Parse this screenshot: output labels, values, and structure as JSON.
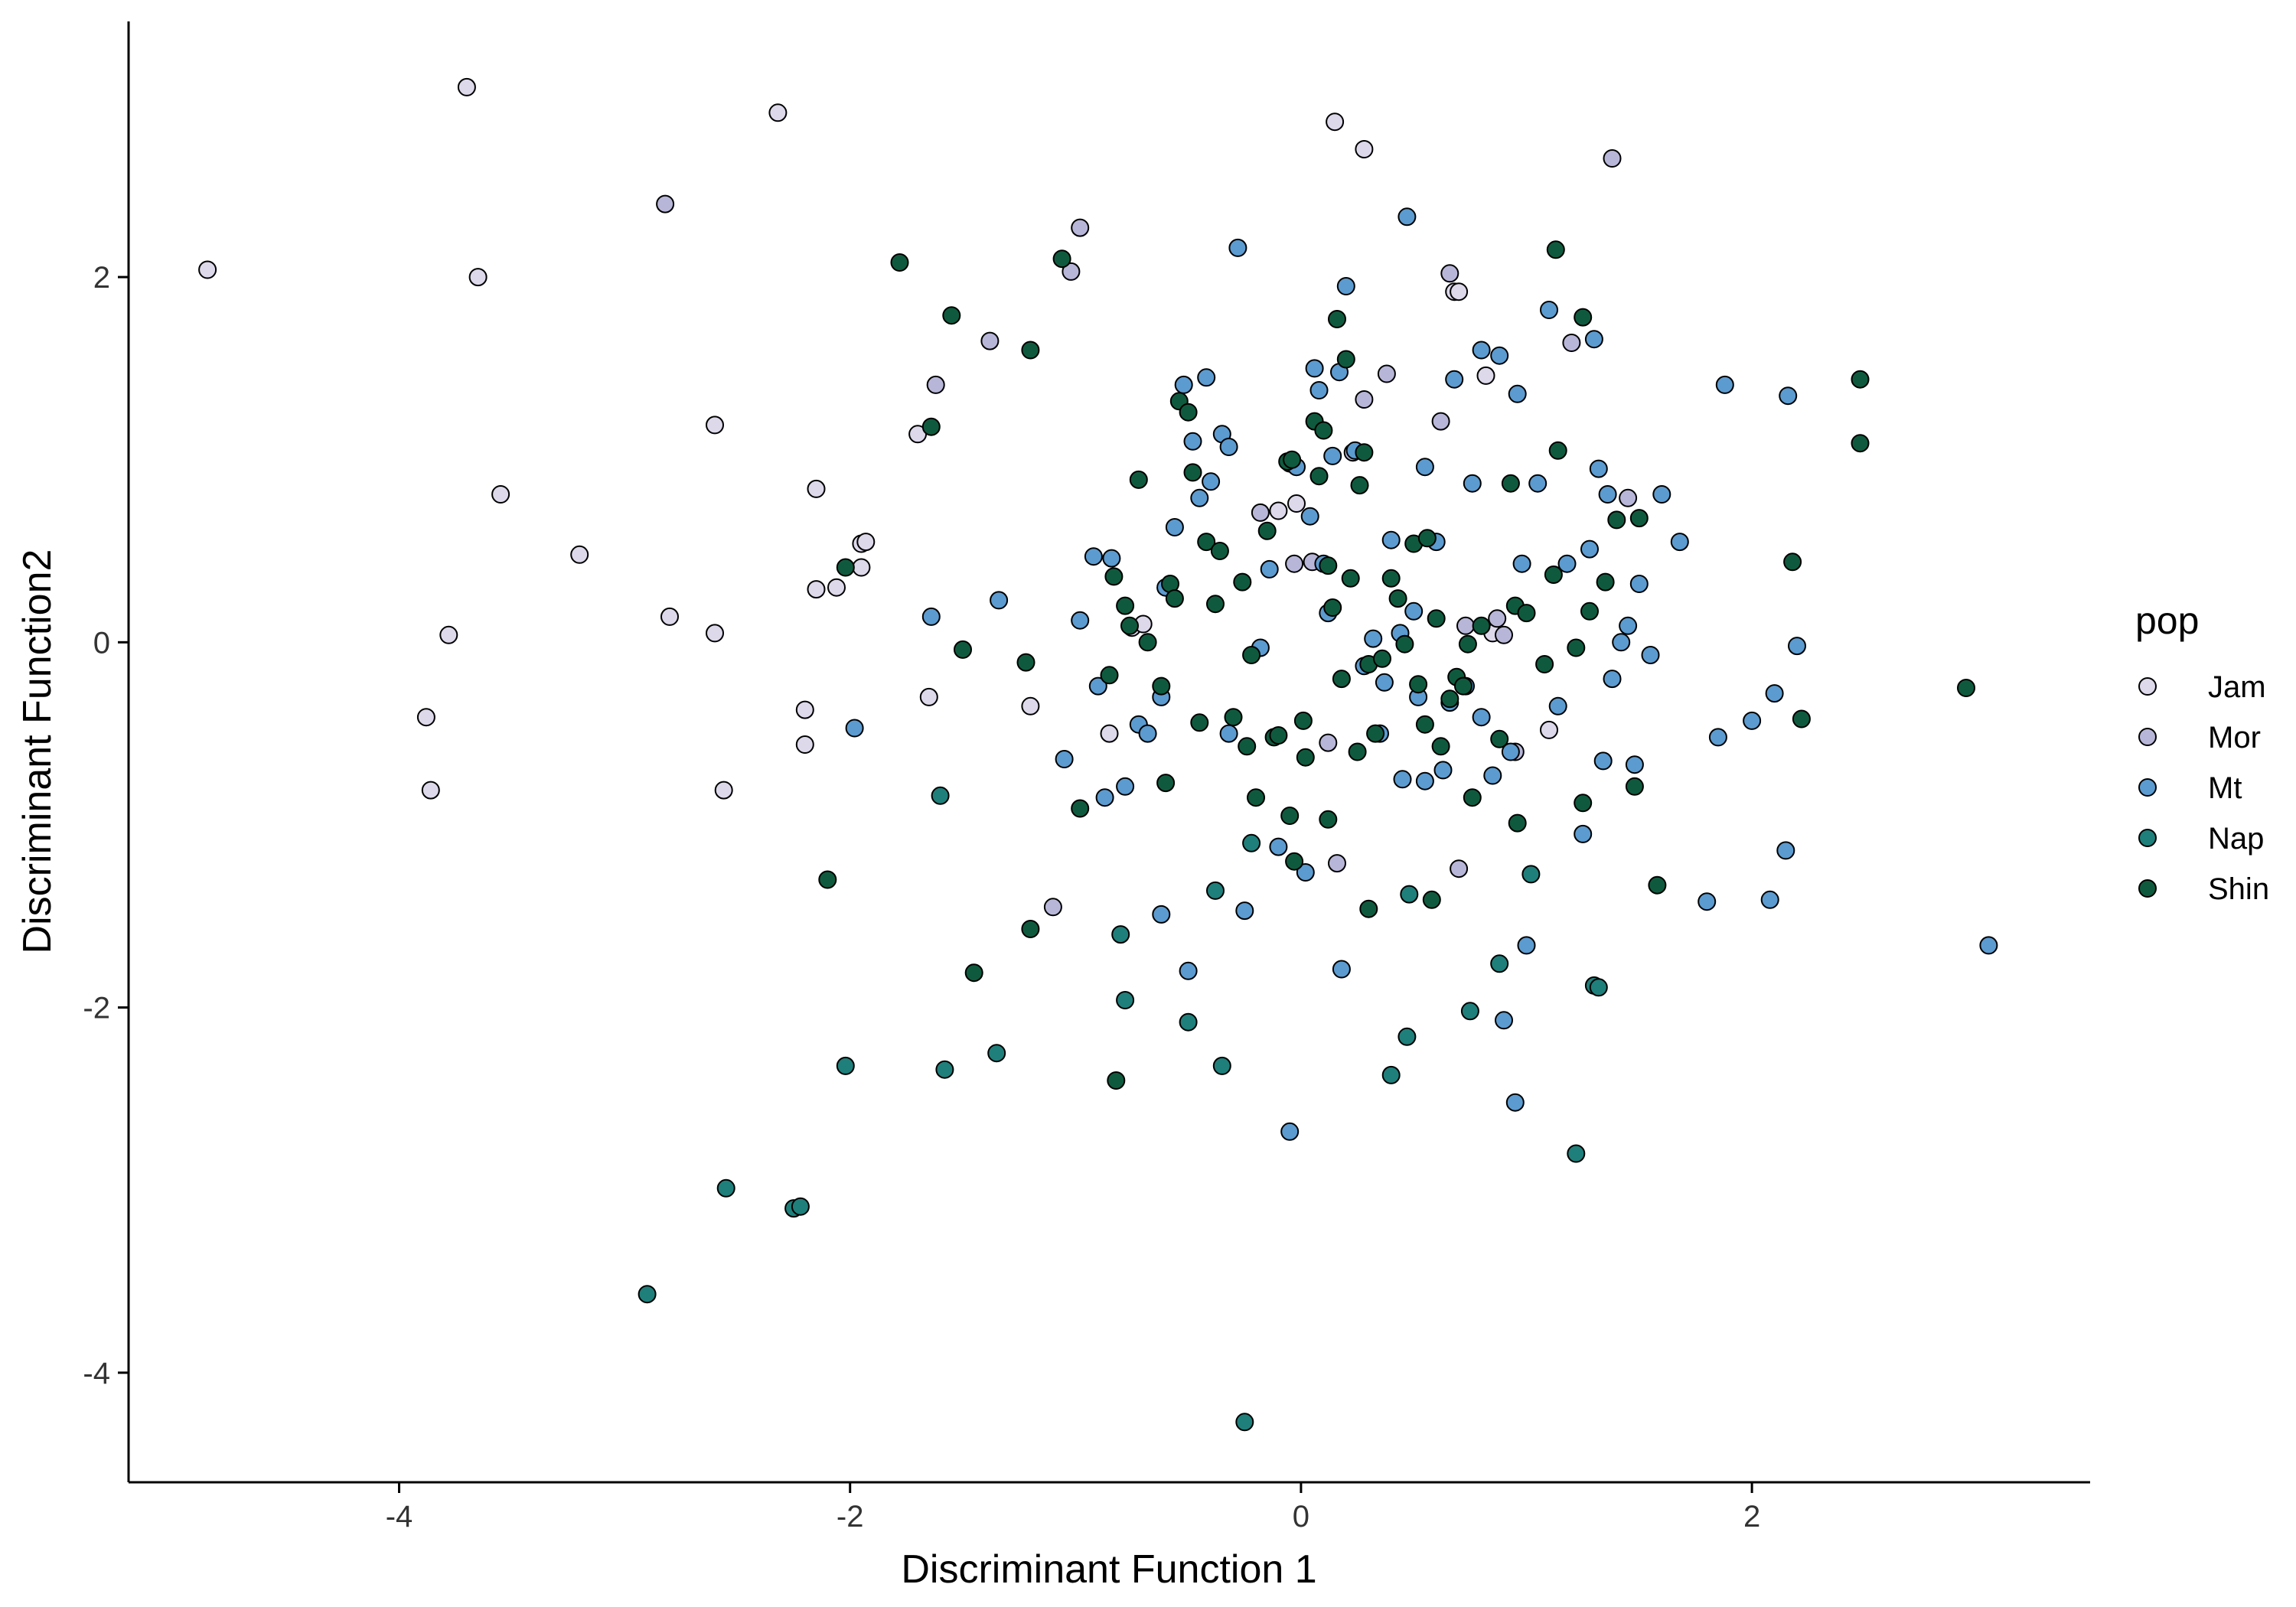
{
  "chart_data": {
    "type": "scatter",
    "title": "",
    "xlabel": "Discriminant Function 1",
    "ylabel": "Discriminant Function2",
    "xlim": [
      -5.2,
      3.5
    ],
    "ylim": [
      -4.6,
      3.4
    ],
    "xticks": [
      -4,
      -2,
      0,
      2
    ],
    "yticks": [
      -4,
      -2,
      0,
      2
    ],
    "tick_labels": {
      "x": [
        "-4",
        "-2",
        "0",
        "2"
      ],
      "y": [
        "-4",
        "-2",
        "0",
        "2"
      ]
    },
    "grid": false,
    "legend": {
      "title": "pop",
      "position": "right"
    },
    "series": [
      {
        "name": "Jam",
        "color": "#ddd8ea",
        "points": [
          [
            -4.85,
            2.04
          ],
          [
            -3.7,
            3.04
          ],
          [
            -3.65,
            2.0
          ],
          [
            -3.55,
            0.81
          ],
          [
            -3.2,
            0.48
          ],
          [
            -3.78,
            0.04
          ],
          [
            -3.88,
            -0.41
          ],
          [
            -3.86,
            -0.81
          ],
          [
            -2.32,
            2.9
          ],
          [
            -2.8,
            0.14
          ],
          [
            -2.6,
            1.19
          ],
          [
            -2.6,
            0.05
          ],
          [
            -2.56,
            -0.81
          ],
          [
            -2.2,
            -0.56
          ],
          [
            -2.2,
            -0.37
          ],
          [
            -2.15,
            0.29
          ],
          [
            -2.06,
            0.3
          ],
          [
            -2.15,
            0.84
          ],
          [
            -1.95,
            0.54
          ],
          [
            -1.93,
            0.55
          ],
          [
            -1.95,
            0.41
          ],
          [
            -1.7,
            1.14
          ],
          [
            -1.65,
            -0.3
          ],
          [
            -1.2,
            -0.35
          ],
          [
            -0.85,
            -0.5
          ],
          [
            -0.75,
            0.08
          ],
          [
            -0.7,
            0.1
          ],
          [
            -0.1,
            0.72
          ],
          [
            -0.02,
            0.76
          ],
          [
            0.15,
            2.85
          ],
          [
            0.28,
            2.7
          ],
          [
            0.68,
            1.92
          ],
          [
            0.7,
            1.92
          ],
          [
            0.85,
            0.05
          ],
          [
            1.1,
            -0.48
          ],
          [
            0.82,
            1.46
          ]
        ]
      },
      {
        "name": "Mor",
        "color": "#b8b6d8",
        "points": [
          [
            -2.82,
            2.4
          ],
          [
            -1.62,
            1.41
          ],
          [
            -1.38,
            1.65
          ],
          [
            -1.02,
            2.03
          ],
          [
            -0.98,
            2.27
          ],
          [
            -1.1,
            -1.45
          ],
          [
            -0.18,
            0.71
          ],
          [
            0.05,
            0.44
          ],
          [
            -0.03,
            0.43
          ],
          [
            0.12,
            -0.55
          ],
          [
            0.16,
            -1.21
          ],
          [
            0.28,
            1.33
          ],
          [
            0.38,
            1.47
          ],
          [
            0.62,
            1.21
          ],
          [
            0.66,
            2.02
          ],
          [
            0.7,
            -1.24
          ],
          [
            0.87,
            0.13
          ],
          [
            0.9,
            0.04
          ],
          [
            1.38,
            2.65
          ],
          [
            1.2,
            1.64
          ],
          [
            1.45,
            0.79
          ],
          [
            0.95,
            -0.6
          ],
          [
            0.23,
            1.04
          ],
          [
            0.73,
            0.09
          ]
        ]
      },
      {
        "name": "Mt",
        "color": "#5b9bd0",
        "points": [
          [
            -1.64,
            0.14
          ],
          [
            -1.98,
            -0.47
          ],
          [
            -1.34,
            0.23
          ],
          [
            -1.05,
            -0.64
          ],
          [
            -0.98,
            0.12
          ],
          [
            -0.92,
            0.47
          ],
          [
            -0.9,
            -0.24
          ],
          [
            -0.87,
            -0.85
          ],
          [
            -0.84,
            0.46
          ],
          [
            -0.78,
            -0.79
          ],
          [
            -0.72,
            -0.45
          ],
          [
            -0.68,
            -0.5
          ],
          [
            -0.62,
            -0.3
          ],
          [
            -0.6,
            0.3
          ],
          [
            -0.56,
            0.63
          ],
          [
            -0.52,
            1.41
          ],
          [
            -0.48,
            1.1
          ],
          [
            -0.45,
            0.79
          ],
          [
            -0.4,
            0.88
          ],
          [
            -0.35,
            1.14
          ],
          [
            -0.32,
            1.07
          ],
          [
            -0.32,
            -0.5
          ],
          [
            -0.28,
            2.16
          ],
          [
            -0.18,
            -0.03
          ],
          [
            -0.14,
            0.4
          ],
          [
            -0.1,
            -1.12
          ],
          [
            -0.05,
            0.98
          ],
          [
            -0.02,
            0.96
          ],
          [
            0.02,
            -1.26
          ],
          [
            0.04,
            0.69
          ],
          [
            0.06,
            1.5
          ],
          [
            0.08,
            1.38
          ],
          [
            0.1,
            0.43
          ],
          [
            0.12,
            0.16
          ],
          [
            0.14,
            1.02
          ],
          [
            0.17,
            1.48
          ],
          [
            0.2,
            1.95
          ],
          [
            0.24,
            1.05
          ],
          [
            0.28,
            -0.13
          ],
          [
            0.32,
            0.02
          ],
          [
            0.35,
            -0.5
          ],
          [
            0.37,
            -0.22
          ],
          [
            0.4,
            0.56
          ],
          [
            0.44,
            0.05
          ],
          [
            0.47,
            2.33
          ],
          [
            0.5,
            0.17
          ],
          [
            0.52,
            -0.3
          ],
          [
            0.55,
            0.96
          ],
          [
            0.6,
            0.55
          ],
          [
            0.63,
            -0.7
          ],
          [
            0.66,
            -0.33
          ],
          [
            0.68,
            1.44
          ],
          [
            0.73,
            -0.24
          ],
          [
            0.76,
            0.87
          ],
          [
            0.8,
            1.6
          ],
          [
            0.8,
            -0.41
          ],
          [
            0.85,
            -0.73
          ],
          [
            0.88,
            1.57
          ],
          [
            0.9,
            -2.07
          ],
          [
            0.93,
            -0.6
          ],
          [
            0.96,
            1.36
          ],
          [
            0.98,
            0.43
          ],
          [
            1.0,
            -1.66
          ],
          [
            1.05,
            0.87
          ],
          [
            1.1,
            1.82
          ],
          [
            1.14,
            -0.35
          ],
          [
            1.18,
            0.43
          ],
          [
            1.25,
            -1.05
          ],
          [
            1.28,
            0.51
          ],
          [
            1.3,
            1.66
          ],
          [
            1.32,
            0.95
          ],
          [
            1.34,
            -0.65
          ],
          [
            1.36,
            0.81
          ],
          [
            1.38,
            -0.2
          ],
          [
            1.42,
            0.0
          ],
          [
            1.45,
            0.09
          ],
          [
            1.48,
            -0.67
          ],
          [
            1.5,
            0.32
          ],
          [
            1.55,
            -0.07
          ],
          [
            1.6,
            0.81
          ],
          [
            1.68,
            0.55
          ],
          [
            1.85,
            -0.52
          ],
          [
            1.88,
            1.41
          ],
          [
            1.8,
            -1.42
          ],
          [
            2.0,
            -0.43
          ],
          [
            2.08,
            -1.41
          ],
          [
            2.1,
            -0.28
          ],
          [
            2.15,
            -1.14
          ],
          [
            2.16,
            1.35
          ],
          [
            2.2,
            -0.02
          ],
          [
            3.05,
            -1.66
          ],
          [
            -0.25,
            -1.47
          ],
          [
            -0.05,
            -2.68
          ],
          [
            -0.5,
            -1.8
          ],
          [
            -0.42,
            1.45
          ],
          [
            0.95,
            -2.52
          ],
          [
            0.18,
            -1.79
          ],
          [
            0.45,
            -0.75
          ],
          [
            -0.62,
            -1.49
          ],
          [
            0.55,
            -0.76
          ]
        ]
      },
      {
        "name": "Nap",
        "color": "#1f7f7a",
        "points": [
          [
            -2.9,
            -3.57
          ],
          [
            -2.55,
            -2.99
          ],
          [
            -2.25,
            -3.1
          ],
          [
            -2.22,
            -3.09
          ],
          [
            -2.02,
            -2.32
          ],
          [
            -1.6,
            -0.84
          ],
          [
            -1.58,
            -2.34
          ],
          [
            -1.35,
            -2.25
          ],
          [
            -0.8,
            -1.6
          ],
          [
            -0.78,
            -1.96
          ],
          [
            -0.5,
            -2.08
          ],
          [
            -0.35,
            -2.32
          ],
          [
            -0.25,
            -4.27
          ],
          [
            -0.22,
            -1.1
          ],
          [
            0.4,
            -2.37
          ],
          [
            0.47,
            -2.16
          ],
          [
            0.75,
            -2.02
          ],
          [
            0.88,
            -1.76
          ],
          [
            1.02,
            -1.27
          ],
          [
            1.22,
            -2.8
          ],
          [
            1.3,
            -1.88
          ],
          [
            1.32,
            -1.89
          ],
          [
            0.48,
            -1.38
          ],
          [
            -0.38,
            -1.36
          ]
        ]
      },
      {
        "name": "Shin",
        "color": "#0f5a3e",
        "points": [
          [
            -2.02,
            0.41
          ],
          [
            -1.78,
            2.08
          ],
          [
            -1.64,
            1.18
          ],
          [
            -1.55,
            1.79
          ],
          [
            -1.5,
            -0.04
          ],
          [
            -1.2,
            1.6
          ],
          [
            -1.22,
            -0.11
          ],
          [
            -1.06,
            2.1
          ],
          [
            -0.98,
            -0.91
          ],
          [
            -0.85,
            -0.18
          ],
          [
            -0.83,
            0.36
          ],
          [
            -0.78,
            0.2
          ],
          [
            -0.76,
            0.09
          ],
          [
            -0.72,
            0.89
          ],
          [
            -0.68,
            0.0
          ],
          [
            -0.62,
            -0.24
          ],
          [
            -0.6,
            -0.77
          ],
          [
            -0.58,
            0.32
          ],
          [
            -0.56,
            0.24
          ],
          [
            -0.54,
            1.32
          ],
          [
            -0.5,
            1.26
          ],
          [
            -0.48,
            0.93
          ],
          [
            -0.45,
            -0.44
          ],
          [
            -0.42,
            0.55
          ],
          [
            -0.38,
            0.21
          ],
          [
            -0.36,
            0.5
          ],
          [
            -0.26,
            0.33
          ],
          [
            -0.24,
            -0.57
          ],
          [
            -0.22,
            -0.07
          ],
          [
            -0.2,
            -0.85
          ],
          [
            -0.15,
            0.61
          ],
          [
            -0.12,
            -0.52
          ],
          [
            -0.05,
            -0.95
          ],
          [
            -0.03,
            -1.2
          ],
          [
            0.01,
            -0.43
          ],
          [
            0.02,
            -0.63
          ],
          [
            0.06,
            1.21
          ],
          [
            0.08,
            0.91
          ],
          [
            0.1,
            1.16
          ],
          [
            0.12,
            0.42
          ],
          [
            0.14,
            0.19
          ],
          [
            0.16,
            1.77
          ],
          [
            0.18,
            -0.2
          ],
          [
            0.2,
            1.55
          ],
          [
            0.22,
            0.35
          ],
          [
            0.25,
            -0.6
          ],
          [
            0.28,
            1.04
          ],
          [
            0.3,
            -0.12
          ],
          [
            0.33,
            -0.5
          ],
          [
            0.36,
            -0.09
          ],
          [
            0.4,
            0.35
          ],
          [
            0.43,
            0.24
          ],
          [
            0.46,
            -0.01
          ],
          [
            0.5,
            0.54
          ],
          [
            0.52,
            -0.23
          ],
          [
            0.55,
            -0.45
          ],
          [
            0.56,
            0.57
          ],
          [
            0.6,
            0.13
          ],
          [
            0.62,
            -0.57
          ],
          [
            0.66,
            -0.31
          ],
          [
            0.69,
            -0.19
          ],
          [
            0.72,
            -0.24
          ],
          [
            0.74,
            -0.01
          ],
          [
            0.76,
            -0.85
          ],
          [
            0.8,
            0.09
          ],
          [
            0.88,
            -0.53
          ],
          [
            0.93,
            0.87
          ],
          [
            0.95,
            0.2
          ],
          [
            1.0,
            0.16
          ],
          [
            1.08,
            -0.12
          ],
          [
            1.12,
            0.37
          ],
          [
            1.13,
            2.15
          ],
          [
            1.14,
            1.05
          ],
          [
            1.22,
            -0.03
          ],
          [
            1.25,
            1.78
          ],
          [
            1.28,
            0.17
          ],
          [
            1.35,
            0.33
          ],
          [
            1.4,
            0.67
          ],
          [
            1.5,
            0.68
          ],
          [
            1.48,
            -0.79
          ],
          [
            1.58,
            -1.33
          ],
          [
            1.25,
            -0.88
          ],
          [
            2.18,
            0.44
          ],
          [
            2.22,
            -0.42
          ],
          [
            2.48,
            1.44
          ],
          [
            2.48,
            1.09
          ],
          [
            2.95,
            -0.25
          ],
          [
            -0.06,
            0.99
          ],
          [
            -0.1,
            -0.51
          ],
          [
            -0.3,
            -0.41
          ],
          [
            -1.45,
            -1.81
          ],
          [
            -0.82,
            -2.4
          ],
          [
            -1.2,
            -1.57
          ],
          [
            -2.1,
            -1.3
          ],
          [
            0.12,
            -0.97
          ],
          [
            0.58,
            -1.41
          ],
          [
            0.96,
            -0.99
          ],
          [
            0.3,
            -1.46
          ],
          [
            -0.04,
            1.0
          ],
          [
            0.26,
            0.86
          ]
        ]
      }
    ]
  }
}
